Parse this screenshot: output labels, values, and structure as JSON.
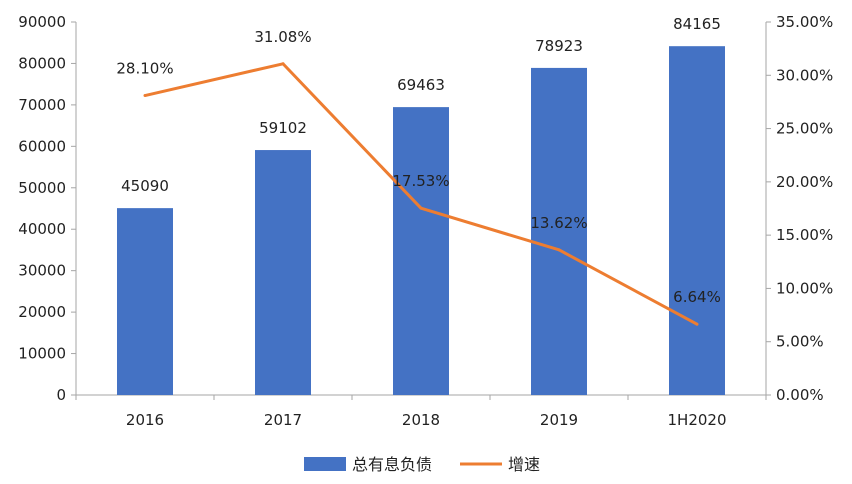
{
  "chart_data": {
    "type": "bar",
    "categories": [
      "2016",
      "2017",
      "2018",
      "2019",
      "1H2020"
    ],
    "series": [
      {
        "name": "总有息负债",
        "type": "bar",
        "axis": "left",
        "values": [
          45090,
          59102,
          69463,
          78923,
          84165
        ],
        "labels": [
          "45090",
          "59102",
          "69463",
          "78923",
          "84165"
        ]
      },
      {
        "name": "增速",
        "type": "line",
        "axis": "right",
        "values": [
          28.1,
          31.08,
          17.53,
          13.62,
          6.64
        ],
        "labels": [
          "28.10%",
          "31.08%",
          "17.53%",
          "13.62%",
          "6.64%"
        ]
      }
    ],
    "y_left": {
      "min": 0,
      "max": 90000,
      "ticks": [
        "0",
        "10000",
        "20000",
        "30000",
        "40000",
        "50000",
        "60000",
        "70000",
        "80000",
        "90000"
      ]
    },
    "y_right": {
      "min": 0,
      "max": 35,
      "ticks": [
        "0.00%",
        "5.00%",
        "10.00%",
        "15.00%",
        "20.00%",
        "25.00%",
        "30.00%",
        "35.00%"
      ]
    },
    "grid": false,
    "legend": "bottom",
    "colors": {
      "bar": "#4472C4",
      "line": "#ED7D31",
      "axis": "#A6A6A6"
    }
  }
}
